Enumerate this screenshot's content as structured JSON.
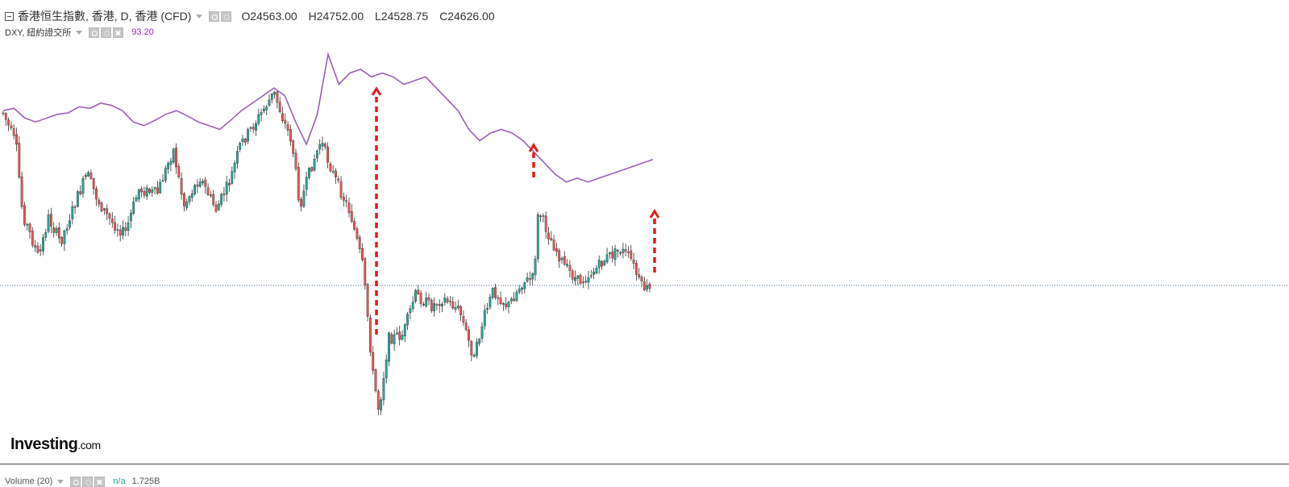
{
  "header": {
    "symbol": "香港恒生指數, 香港, D, 香港 (CFD)",
    "open": "O24563.00",
    "high": "H24752.00",
    "low": "L24528.75",
    "close": "C24626.00"
  },
  "overlay": {
    "symbol": "DXY, 紐約證交所",
    "value": "93.20"
  },
  "volume": {
    "label": "Volume (20)",
    "na": "n/a",
    "value": "1.725B"
  },
  "branding": {
    "logo_main": "Investing",
    "logo_dotcom": ".com"
  },
  "colors": {
    "up": "#26a69a",
    "down": "#ef5350",
    "dxy_line": "#9c5fb5",
    "arrow": "#e21b1b",
    "price_line": "#3a6a9a"
  },
  "chart_data": {
    "type": "line",
    "series": [
      {
        "name": "DXY",
        "values": [
          93.85,
          93.88,
          93.75,
          93.7,
          93.75,
          93.8,
          93.82,
          93.9,
          93.88,
          93.95,
          93.92,
          93.85,
          93.7,
          93.65,
          93.72,
          93.8,
          93.85,
          93.78,
          93.7,
          93.65,
          93.6,
          93.72,
          93.85,
          93.95,
          94.05,
          94.15,
          94.05,
          93.7,
          93.4,
          93.8,
          94.6,
          94.2,
          94.35,
          94.4,
          94.3,
          94.35,
          94.3,
          94.2,
          94.25,
          94.3,
          94.15,
          94.0,
          93.85,
          93.6,
          93.45,
          93.55,
          93.6,
          93.55,
          93.45,
          93.3,
          93.15,
          93.0,
          92.9,
          92.95,
          92.9,
          92.95,
          93.0,
          93.05,
          93.1,
          93.15,
          93.2
        ]
      }
    ],
    "candles_note": "Hang Seng Index daily candlesticks",
    "last_close": 24626.0
  }
}
